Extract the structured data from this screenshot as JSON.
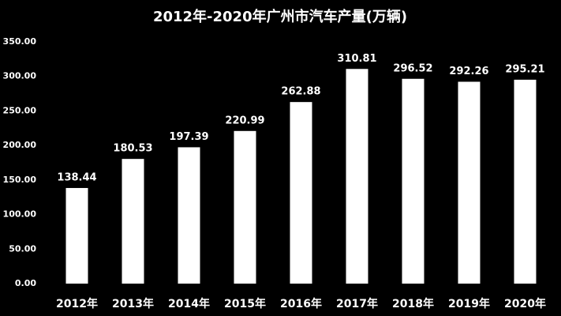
{
  "chart_data": {
    "type": "bar",
    "title": "2012年-2020年广州市汽车产量(万辆)",
    "categories": [
      "2012年",
      "2013年",
      "2014年",
      "2015年",
      "2016年",
      "2017年",
      "2018年",
      "2019年",
      "2020年"
    ],
    "values": [
      138.44,
      180.53,
      197.39,
      220.99,
      262.88,
      310.81,
      296.52,
      292.26,
      295.21
    ],
    "color": "#ffffff",
    "ylim": [
      0,
      350
    ],
    "yticks": [
      {
        "value": 0,
        "label": "0.00"
      },
      {
        "value": 50,
        "label": "50.00"
      },
      {
        "value": 100,
        "label": "100.00"
      },
      {
        "value": 150,
        "label": "150.00"
      },
      {
        "value": 200,
        "label": "200.00"
      },
      {
        "value": 250,
        "label": "250.00"
      },
      {
        "value": 300,
        "label": "300.00"
      },
      {
        "value": 350,
        "label": "350.00"
      }
    ],
    "grid": false
  }
}
